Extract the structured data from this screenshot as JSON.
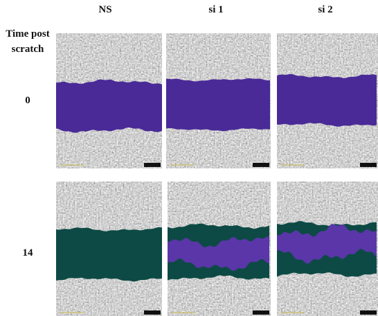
{
  "columns": [
    "NS",
    "si 1",
    "si 2"
  ],
  "row_header": "Time post scratch",
  "rows": [
    "0",
    "14"
  ]
}
